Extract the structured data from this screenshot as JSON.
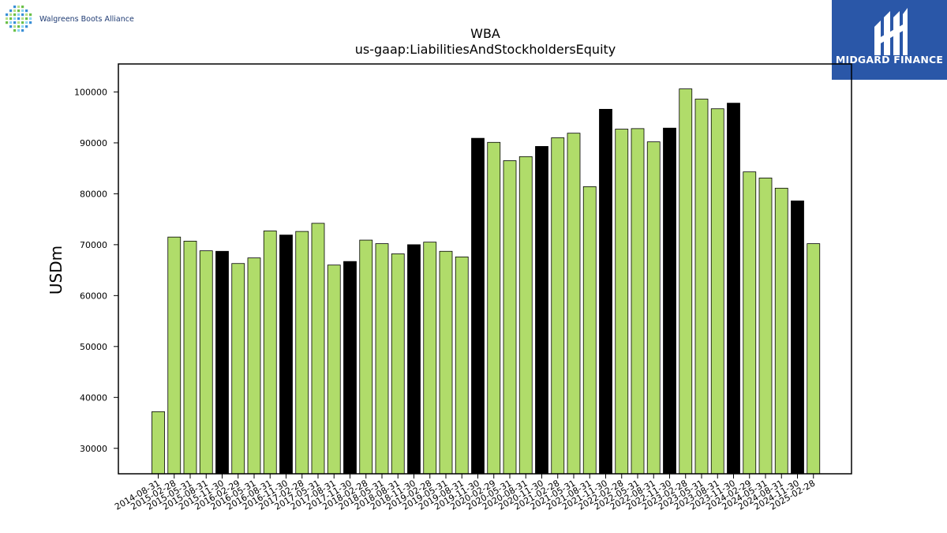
{
  "header": {
    "company_name": "Walgreens Boots Alliance",
    "brand_name": "MIDGARD FINANCE"
  },
  "colors": {
    "bar_normal": "#b0dc6a",
    "bar_highlight": "#000000",
    "bar_edge": "#000000",
    "brand_bg": "#2a57a8"
  },
  "chart_data": {
    "type": "bar",
    "title": "WBA",
    "subtitle": "us-gaap:LiabilitiesAndStockholdersEquity",
    "xlabel": "",
    "ylabel": "USDm",
    "ylim": [
      25000,
      105500
    ],
    "yticks": [
      30000,
      40000,
      50000,
      60000,
      70000,
      80000,
      90000,
      100000
    ],
    "grid": false,
    "categories": [
      "2014-08-31",
      "2015-02-28",
      "2015-05-31",
      "2015-08-31",
      "2015-11-30",
      "2016-02-29",
      "2016-05-31",
      "2016-08-31",
      "2016-11-30",
      "2017-02-28",
      "2017-05-31",
      "2017-08-31",
      "2017-11-30",
      "2018-02-28",
      "2018-05-31",
      "2018-08-31",
      "2018-11-30",
      "2019-02-28",
      "2019-05-31",
      "2019-08-31",
      "2019-11-30",
      "2020-02-29",
      "2020-05-31",
      "2020-08-31",
      "2020-11-30",
      "2021-02-28",
      "2021-05-31",
      "2021-08-31",
      "2021-11-30",
      "2022-02-28",
      "2022-05-31",
      "2022-08-31",
      "2022-11-30",
      "2023-02-28",
      "2023-05-31",
      "2023-08-31",
      "2023-11-30",
      "2024-02-29",
      "2024-05-31",
      "2024-08-31",
      "2024-11-30",
      "2025-02-28"
    ],
    "values": [
      37200,
      71500,
      70700,
      68800,
      68700,
      66300,
      67400,
      72700,
      71900,
      72600,
      74200,
      66000,
      66700,
      70900,
      70200,
      68200,
      70000,
      70500,
      68700,
      67600,
      90900,
      90100,
      86500,
      87300,
      89300,
      91000,
      91900,
      81400,
      96600,
      92700,
      92800,
      90200,
      92900,
      100600,
      98600,
      96700,
      97800,
      84300,
      83100,
      81100,
      78600,
      70200
    ],
    "highlight": [
      false,
      false,
      false,
      false,
      true,
      false,
      false,
      false,
      true,
      false,
      false,
      false,
      true,
      false,
      false,
      false,
      true,
      false,
      false,
      false,
      true,
      false,
      false,
      false,
      true,
      false,
      false,
      false,
      true,
      false,
      false,
      false,
      true,
      false,
      false,
      false,
      true,
      false,
      false,
      false,
      true,
      false
    ]
  }
}
